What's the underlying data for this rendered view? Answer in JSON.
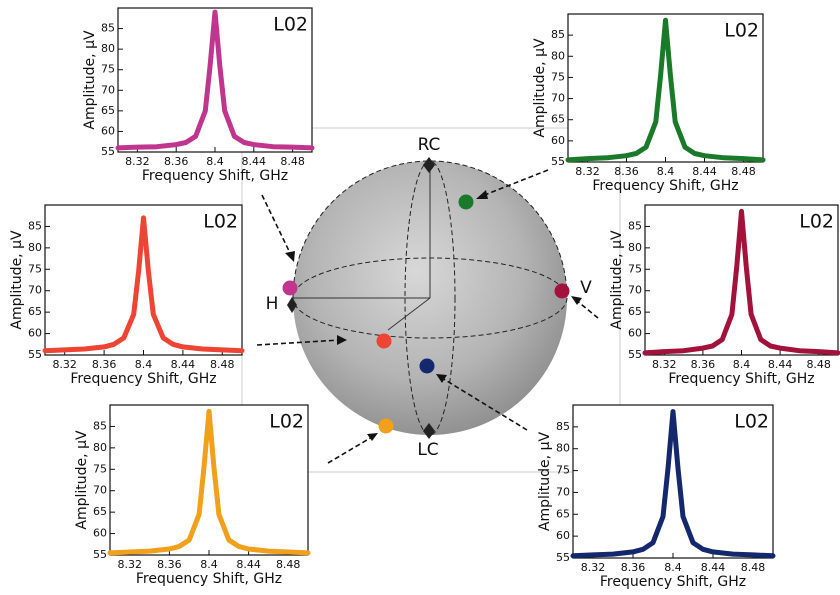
{
  "chart_data": [
    {
      "type": "line",
      "title": "L02",
      "x_label": "Frequency Shift, GHz",
      "y_label": "Amplitude, μV",
      "x": [
        8.3,
        8.32,
        8.34,
        8.36,
        8.37,
        8.38,
        8.39,
        8.395,
        8.4,
        8.405,
        8.41,
        8.42,
        8.43,
        8.44,
        8.46,
        8.48,
        8.5
      ],
      "series": [
        {
          "color": "#c0368e",
          "values": [
            56.0,
            56.2,
            56.3,
            56.8,
            57.3,
            58.8,
            65.0,
            76.0,
            89.0,
            76.0,
            65.0,
            58.8,
            57.3,
            56.8,
            56.3,
            56.2,
            56.0
          ]
        }
      ],
      "xlim": [
        8.3,
        8.5
      ],
      "ylim": [
        55,
        90
      ],
      "xticks": [
        8.32,
        8.36,
        8.4,
        8.44,
        8.48
      ],
      "yticks": [
        55,
        60,
        65,
        70,
        75,
        80,
        85
      ]
    },
    {
      "type": "line",
      "title": "L02",
      "x_label": "Frequency Shift, GHz",
      "y_label": "Amplitude, μV",
      "x": [
        8.3,
        8.32,
        8.34,
        8.36,
        8.37,
        8.38,
        8.39,
        8.395,
        8.4,
        8.405,
        8.41,
        8.42,
        8.43,
        8.44,
        8.46,
        8.48,
        8.5
      ],
      "series": [
        {
          "color": "#1a7a2a",
          "values": [
            55.5,
            55.8,
            56.0,
            56.5,
            57.0,
            58.5,
            64.5,
            75.5,
            88.5,
            75.5,
            64.5,
            58.5,
            57.0,
            56.5,
            56.0,
            55.8,
            55.5
          ]
        }
      ],
      "xlim": [
        8.3,
        8.5
      ],
      "ylim": [
        55,
        90
      ],
      "xticks": [
        8.32,
        8.36,
        8.4,
        8.44,
        8.48
      ],
      "yticks": [
        55,
        60,
        65,
        70,
        75,
        80,
        85
      ]
    },
    {
      "type": "line",
      "title": "L02",
      "x_label": "Frequency Shift, GHz",
      "y_label": "Amplitude, μV",
      "x": [
        8.3,
        8.32,
        8.34,
        8.36,
        8.37,
        8.38,
        8.39,
        8.395,
        8.4,
        8.405,
        8.41,
        8.42,
        8.43,
        8.44,
        8.46,
        8.48,
        8.5
      ],
      "series": [
        {
          "color": "#ee4433",
          "values": [
            56.0,
            56.2,
            56.4,
            56.9,
            57.5,
            59.0,
            64.5,
            74.5,
            87.0,
            74.5,
            64.5,
            59.0,
            57.5,
            56.9,
            56.4,
            56.2,
            56.0
          ]
        }
      ],
      "xlim": [
        8.3,
        8.5
      ],
      "ylim": [
        55,
        90
      ],
      "xticks": [
        8.32,
        8.36,
        8.4,
        8.44,
        8.48
      ],
      "yticks": [
        55,
        60,
        65,
        70,
        75,
        80,
        85
      ]
    },
    {
      "type": "line",
      "title": "L02",
      "x_label": "Frequency Shift, GHz",
      "y_label": "Amplitude, μV",
      "x": [
        8.3,
        8.32,
        8.34,
        8.36,
        8.37,
        8.38,
        8.39,
        8.395,
        8.4,
        8.405,
        8.41,
        8.42,
        8.43,
        8.44,
        8.46,
        8.48,
        8.5
      ],
      "series": [
        {
          "color": "#a3123a",
          "values": [
            55.5,
            55.8,
            56.0,
            56.6,
            57.1,
            58.6,
            64.5,
            75.5,
            88.5,
            75.5,
            64.5,
            58.6,
            57.1,
            56.6,
            56.0,
            55.8,
            55.5
          ]
        }
      ],
      "xlim": [
        8.3,
        8.5
      ],
      "ylim": [
        55,
        90
      ],
      "xticks": [
        8.32,
        8.36,
        8.4,
        8.44,
        8.48
      ],
      "yticks": [
        55,
        60,
        65,
        70,
        75,
        80,
        85
      ]
    },
    {
      "type": "line",
      "title": "L02",
      "x_label": "Frequency Shift, GHz",
      "y_label": "Amplitude, μV",
      "x": [
        8.3,
        8.32,
        8.34,
        8.36,
        8.37,
        8.38,
        8.39,
        8.395,
        8.4,
        8.405,
        8.41,
        8.42,
        8.43,
        8.44,
        8.46,
        8.48,
        8.5
      ],
      "series": [
        {
          "color": "#f0a01a",
          "values": [
            55.5,
            55.7,
            55.9,
            56.4,
            57.0,
            58.5,
            64.5,
            75.5,
            88.5,
            75.5,
            64.5,
            58.5,
            57.0,
            56.4,
            55.9,
            55.7,
            55.5
          ]
        }
      ],
      "xlim": [
        8.3,
        8.5
      ],
      "ylim": [
        55,
        90
      ],
      "xticks": [
        8.32,
        8.36,
        8.4,
        8.44,
        8.48
      ],
      "yticks": [
        55,
        60,
        65,
        70,
        75,
        80,
        85
      ]
    },
    {
      "type": "line",
      "title": "L02",
      "x_label": "Frequency Shift, GHz",
      "y_label": "Amplitude, μV",
      "x": [
        8.3,
        8.32,
        8.34,
        8.36,
        8.37,
        8.38,
        8.39,
        8.395,
        8.4,
        8.405,
        8.41,
        8.42,
        8.43,
        8.44,
        8.46,
        8.48,
        8.5
      ],
      "series": [
        {
          "color": "#14286e",
          "values": [
            55.5,
            55.7,
            55.9,
            56.4,
            57.0,
            58.5,
            64.5,
            75.5,
            88.5,
            75.5,
            64.5,
            58.5,
            57.0,
            56.4,
            55.9,
            55.7,
            55.5
          ]
        }
      ],
      "xlim": [
        8.3,
        8.5
      ],
      "ylim": [
        55,
        90
      ],
      "xticks": [
        8.32,
        8.36,
        8.4,
        8.44,
        8.48
      ],
      "yticks": [
        55,
        60,
        65,
        70,
        75,
        80,
        85
      ]
    }
  ],
  "sphere": {
    "labels": [
      "RC",
      "LC",
      "H",
      "V"
    ]
  }
}
